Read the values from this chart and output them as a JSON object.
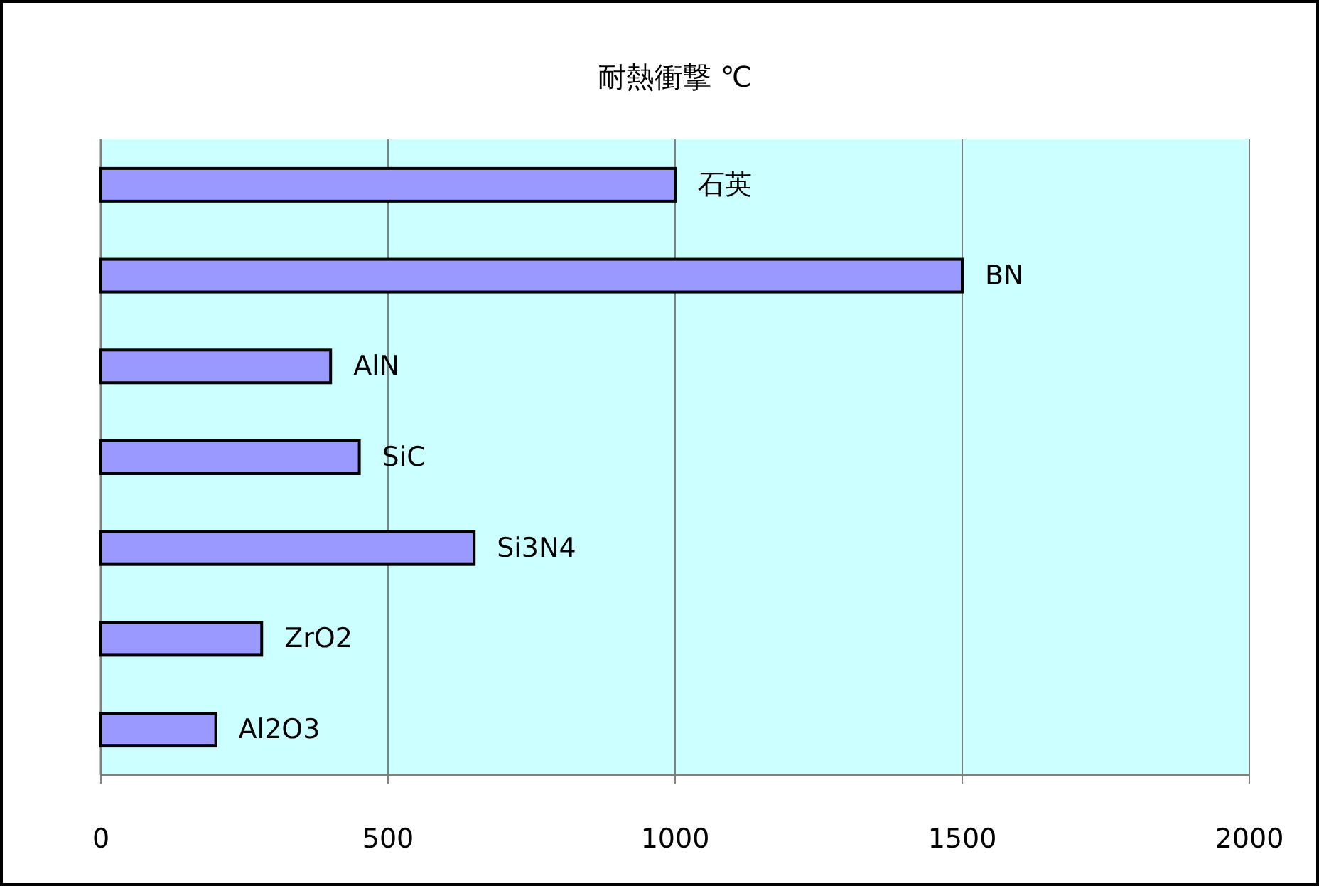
{
  "chart_data": {
    "type": "bar",
    "orientation": "horizontal",
    "title": "耐熱衝撃 ℃",
    "categories": [
      "石英",
      "BN",
      "AlN",
      "SiC",
      "Si3N4",
      "ZrO2",
      "Al2O3"
    ],
    "values": [
      1000,
      1500,
      400,
      450,
      650,
      280,
      200
    ],
    "color": "#9999ff",
    "xlim": [
      0,
      2000
    ],
    "xticks": [
      0,
      500,
      1000,
      1500,
      2000
    ],
    "grid": "x"
  }
}
